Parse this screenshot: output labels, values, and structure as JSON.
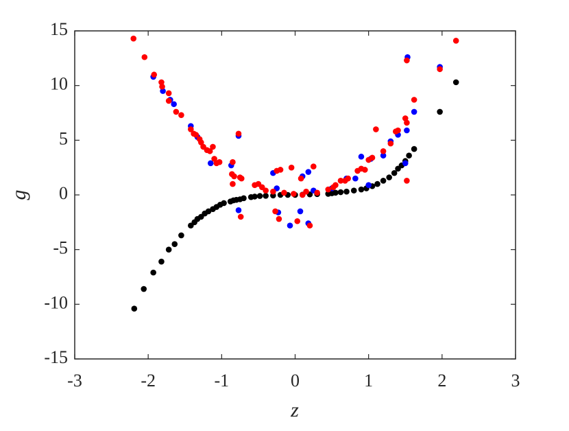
{
  "chart_data": {
    "type": "scatter",
    "x_label": "z",
    "y_label": "g",
    "xlim": [
      -3,
      3
    ],
    "xticks": [
      -3,
      -2,
      -1,
      0,
      1,
      2,
      3
    ],
    "ylim": [
      -15,
      15
    ],
    "yticks": [
      -15,
      -10,
      -5,
      0,
      5,
      10,
      15
    ],
    "series": [
      {
        "color": "#000000",
        "x": [
          -2.19,
          -2.06,
          -1.93,
          -1.82,
          -1.72,
          -1.64,
          -1.55,
          -1.42,
          -1.37,
          -1.33,
          -1.28,
          -1.23,
          -1.18,
          -1.12,
          -1.07,
          -1.02,
          -0.97,
          -0.88,
          -0.84,
          -0.8,
          -0.75,
          -0.7,
          -0.6,
          -0.55,
          -0.48,
          -0.4,
          -0.3,
          -0.2,
          -0.1,
          0,
          0.1,
          0.2,
          0.3,
          0.45,
          0.5,
          0.55,
          0.62,
          0.7,
          0.8,
          0.9,
          0.97,
          1.05,
          1.12,
          1.2,
          1.28,
          1.35,
          1.4,
          1.45,
          1.5,
          1.55,
          1.62,
          1.97,
          2.19
        ],
        "values": [
          -10.4,
          -8.6,
          -7.1,
          -6.1,
          -5.0,
          -4.5,
          -3.7,
          -2.8,
          -2.5,
          -2.2,
          -2.0,
          -1.7,
          -1.5,
          -1.3,
          -1.1,
          -0.9,
          -0.75,
          -0.6,
          -0.5,
          -0.45,
          -0.4,
          -0.3,
          -0.2,
          -0.15,
          -0.1,
          -0.08,
          -0.05,
          0,
          0,
          0,
          0.02,
          0.05,
          0.07,
          0.1,
          0.15,
          0.2,
          0.25,
          0.3,
          0.4,
          0.5,
          0.6,
          0.8,
          1.0,
          1.3,
          1.6,
          2.0,
          2.4,
          2.7,
          3.1,
          3.6,
          4.2,
          7.6,
          10.3
        ]
      },
      {
        "color": "#0000ff",
        "x": [
          -1.93,
          -1.8,
          -1.7,
          -1.65,
          -1.42,
          -1.33,
          -1.15,
          -0.87,
          -0.77,
          -0.77,
          -0.3,
          -0.25,
          -0.23,
          -0.07,
          0.07,
          0.1,
          0.18,
          0.18,
          0.25,
          0.5,
          0.7,
          0.82,
          0.9,
          1.0,
          1.03,
          1.2,
          1.3,
          1.4,
          1.5,
          1.52,
          1.53,
          1.62,
          1.97
        ],
        "values": [
          10.8,
          9.5,
          8.7,
          8.3,
          6.3,
          5.3,
          2.9,
          2.7,
          5.4,
          -1.4,
          2.0,
          0.6,
          -1.6,
          -2.8,
          -1.5,
          1.7,
          2.1,
          -2.6,
          0.4,
          0.6,
          1.5,
          1.5,
          3.5,
          0.9,
          3.3,
          3.6,
          4.9,
          5.5,
          2.9,
          5.9,
          12.6,
          7.6,
          11.7
        ]
      },
      {
        "color": "#ff0000",
        "x": [
          -2.2,
          -2.05,
          -1.92,
          -1.82,
          -1.81,
          -1.72,
          -1.72,
          -1.62,
          -1.55,
          -1.42,
          -1.38,
          -1.35,
          -1.3,
          -1.28,
          -1.25,
          -1.2,
          -1.16,
          -1.12,
          -1.1,
          -1.07,
          -1.03,
          -0.85,
          -0.86,
          -0.83,
          -0.85,
          -0.77,
          -0.75,
          -0.73,
          -0.74,
          -0.55,
          -0.5,
          -0.45,
          -0.4,
          -0.3,
          -0.27,
          -0.22,
          -0.25,
          -0.2,
          -0.15,
          -0.05,
          -0.02,
          0.03,
          0.08,
          0.1,
          0.15,
          0.2,
          0.25,
          0.3,
          0.45,
          0.52,
          0.55,
          0.62,
          0.68,
          0.72,
          0.85,
          0.9,
          0.95,
          1.0,
          1.05,
          1.1,
          1.2,
          1.3,
          1.37,
          1.4,
          1.5,
          1.52,
          1.52,
          1.52,
          1.62,
          1.97,
          2.19
        ],
        "values": [
          14.3,
          12.6,
          11.0,
          10.3,
          9.9,
          9.3,
          8.6,
          7.6,
          7.3,
          6.0,
          5.6,
          5.5,
          5.1,
          4.8,
          4.4,
          4.1,
          4.0,
          4.4,
          3.3,
          2.9,
          3.0,
          3.0,
          1.9,
          1.7,
          1.0,
          5.6,
          1.6,
          1.5,
          -2.0,
          0.9,
          1.0,
          0.7,
          0.4,
          0.3,
          -1.5,
          -2.2,
          2.2,
          2.3,
          0.2,
          2.5,
          0.1,
          -2.4,
          1.5,
          0,
          0.3,
          -2.8,
          2.6,
          0.2,
          0.5,
          0.7,
          0.9,
          1.3,
          1.3,
          1.5,
          2.2,
          2.4,
          2.3,
          3.2,
          3.4,
          6.0,
          4.0,
          4.7,
          5.8,
          5.9,
          7.0,
          6.6,
          12.3,
          1.3,
          8.7,
          11.5,
          14.1
        ]
      }
    ]
  }
}
